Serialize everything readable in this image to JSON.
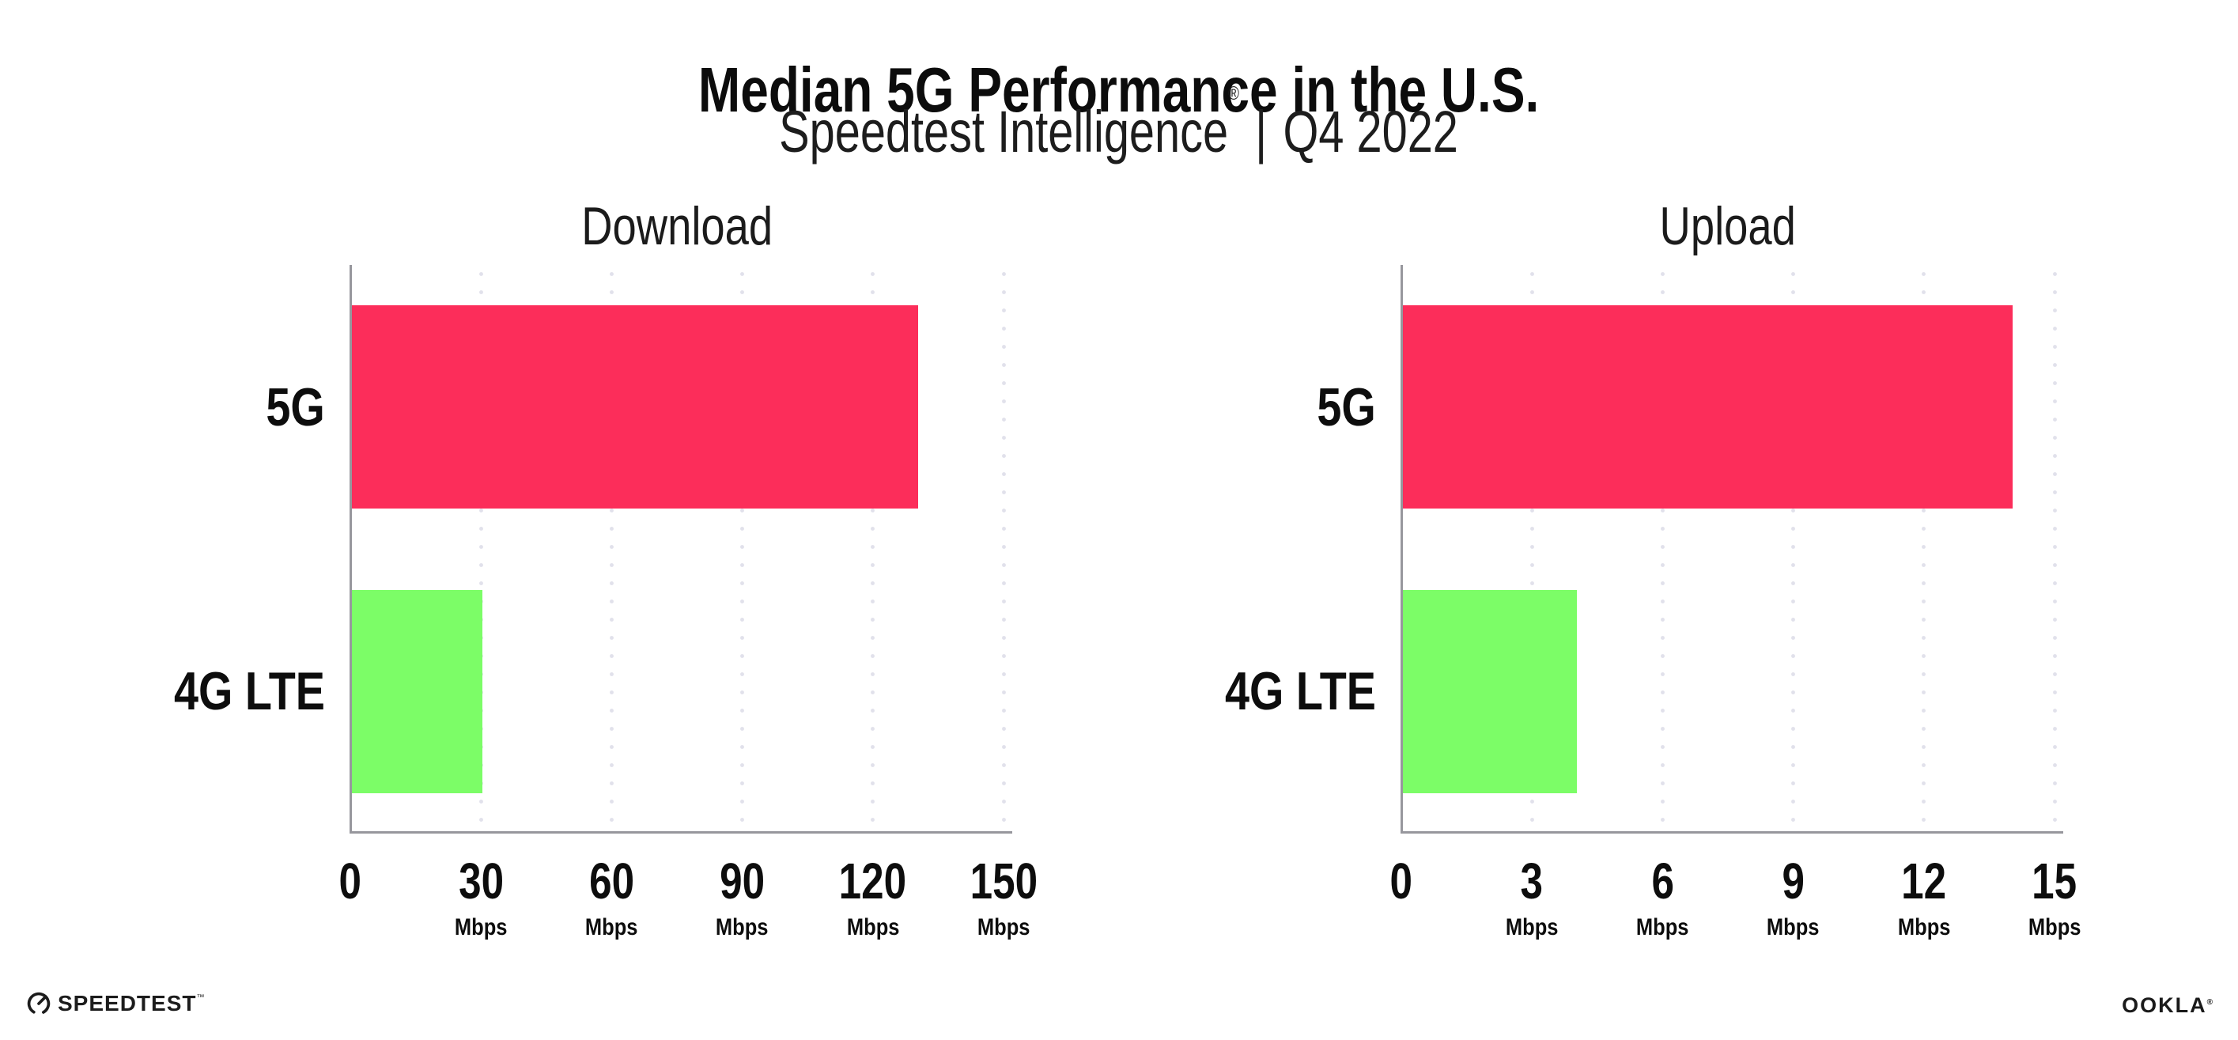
{
  "header": {
    "title": "Median 5G Performance in the U.S.",
    "subtitle_brand": "Speedtest Intelligence",
    "subtitle_registered": "®",
    "subtitle_separator": "|",
    "subtitle_period": "Q4 2022"
  },
  "footer": {
    "speedtest_label": "SPEEDTEST",
    "speedtest_trademark": "™",
    "speedtest_gauge_icon": "gauge-icon",
    "ookla_label": "OOKLA",
    "ookla_registered": "®"
  },
  "colors": {
    "bar_5g": "#FC2D5A",
    "bar_4g_lte": "#7CFD67",
    "axis": "#97979D",
    "gridline": "#E1E1EB",
    "text": "#111111"
  },
  "chart_data": [
    {
      "type": "bar",
      "orientation": "horizontal",
      "title": "Download",
      "categories": [
        "5G",
        "4G LTE"
      ],
      "values": [
        130,
        30
      ],
      "unit": "Mbps",
      "xlim": [
        0,
        150
      ],
      "xticks": [
        0,
        30,
        60,
        90,
        120,
        150
      ],
      "tick_unit_label": "Mbps",
      "bar_colors": [
        "#FC2D5A",
        "#7CFD67"
      ],
      "grid": "dotted-vertical-gridlines",
      "legend": "none"
    },
    {
      "type": "bar",
      "orientation": "horizontal",
      "title": "Upload",
      "categories": [
        "5G",
        "4G LTE"
      ],
      "values": [
        14,
        4
      ],
      "unit": "Mbps",
      "xlim": [
        0,
        15
      ],
      "xticks": [
        0,
        3,
        6,
        9,
        12,
        15
      ],
      "tick_unit_label": "Mbps",
      "bar_colors": [
        "#FC2D5A",
        "#7CFD67"
      ],
      "grid": "dotted-vertical-gridlines",
      "legend": "none"
    }
  ]
}
